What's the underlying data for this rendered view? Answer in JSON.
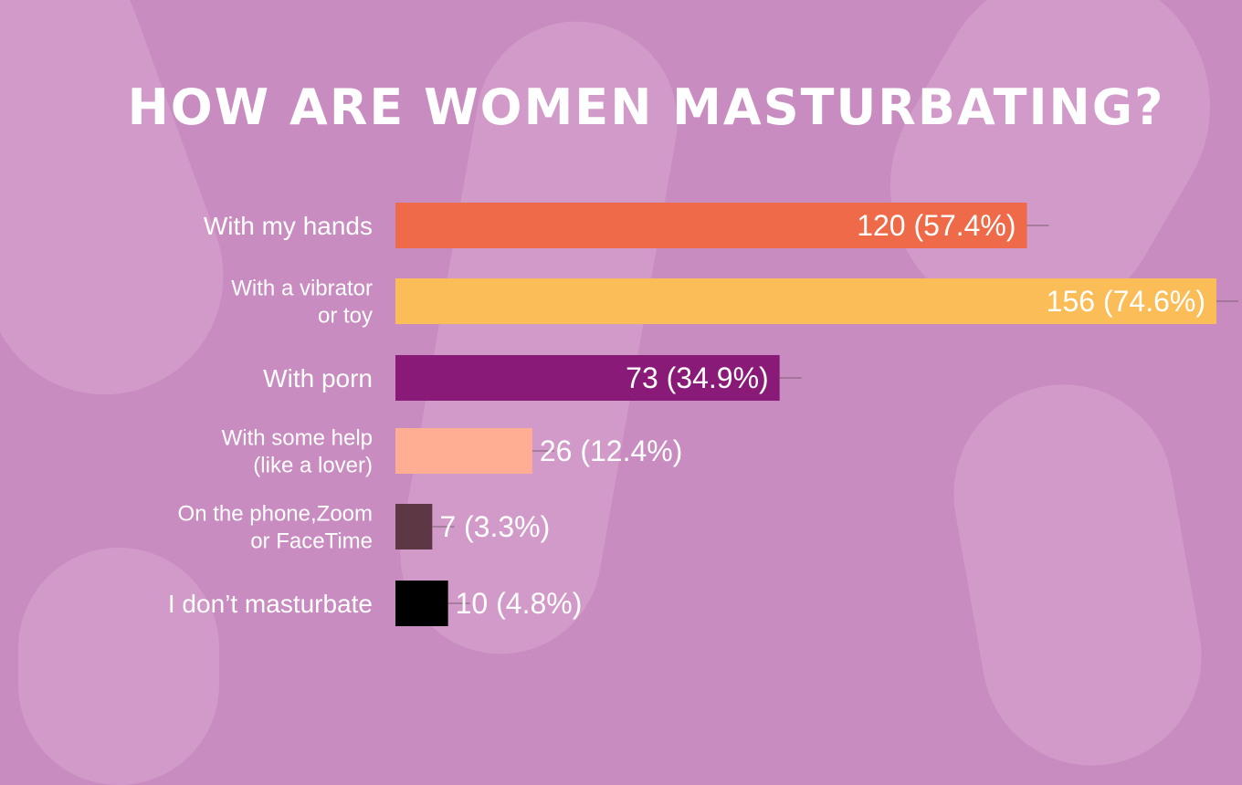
{
  "chart_data": {
    "type": "bar",
    "orientation": "horizontal",
    "title": "HOW ARE WOMEN MASTURBATING?",
    "categories": [
      [
        "With my hands"
      ],
      [
        "With a vibrator",
        "or toy"
      ],
      [
        "With porn"
      ],
      [
        "With some help",
        "(like a lover)"
      ],
      [
        "On the phone,Zoom",
        "or FaceTime"
      ],
      [
        "I don’t masturbate"
      ]
    ],
    "values": [
      120,
      156,
      73,
      26,
      7,
      10
    ],
    "data_labels": [
      "120 (57.4%)",
      "156 (74.6%)",
      "73 (34.9%)",
      "26 (12.4%)",
      "7 (3.3%)",
      "10 (4.8%)"
    ],
    "colors": [
      "#ef6a48",
      "#fbbd58",
      "#891a78",
      "#ffae93",
      "#5e3744",
      "#000000"
    ],
    "xlim": [
      0,
      156
    ],
    "grid": false,
    "legend": "none",
    "background": "#c98cc0"
  }
}
